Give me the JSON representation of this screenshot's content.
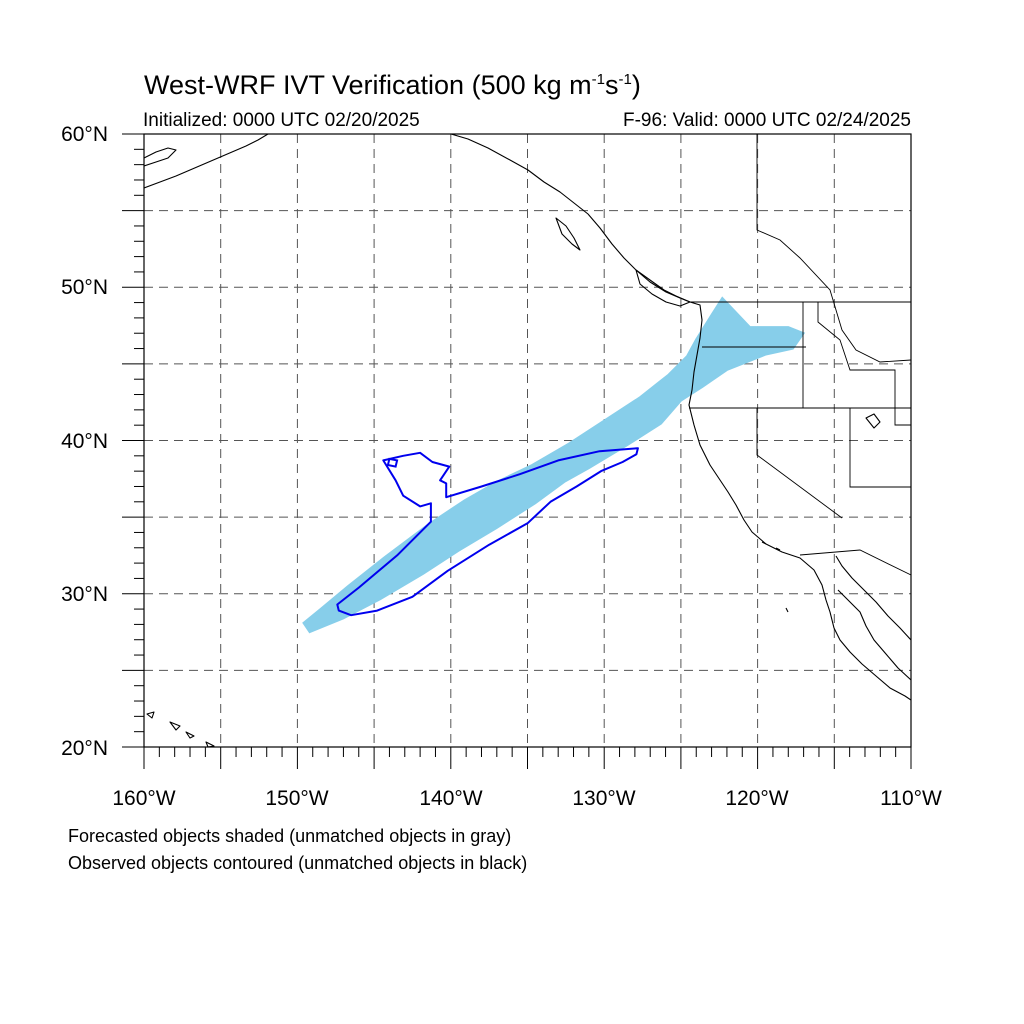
{
  "title": {
    "main": "West-WRF IVT Verification (500 kg m",
    "exp1": "-1",
    "mid": "s",
    "exp2": "-1",
    "close": ")"
  },
  "init_label": "Initialized: 0000 UTC 02/20/2025",
  "valid_label": "F-96: Valid: 0000 UTC 02/24/2025",
  "notes": {
    "forecast": "Forecasted objects shaded (unmatched objects in gray)",
    "observed": "Observed objects contoured (unmatched objects in black)"
  },
  "axes": {
    "lat_labels": [
      "60°N",
      "50°N",
      "40°N",
      "30°N",
      "20°N"
    ],
    "lon_labels": [
      "160°W",
      "150°W",
      "140°W",
      "130°W",
      "120°W",
      "110°W"
    ]
  },
  "map_extent": {
    "lon_min": -160,
    "lon_max": -110,
    "lat_min": 20,
    "lat_max": 60
  },
  "colors": {
    "forecast_fill": "#87ceea",
    "observed_contour": "#0000ee",
    "coast": "#000000",
    "grid": "#555555"
  },
  "forecast_object": [
    [
      -149.2,
      27.5
    ],
    [
      -147,
      28.4
    ],
    [
      -144.5,
      29.7
    ],
    [
      -141.8,
      31.3
    ],
    [
      -139.5,
      32.8
    ],
    [
      -137,
      34.3
    ],
    [
      -134.5,
      35.9
    ],
    [
      -132.6,
      37.3
    ],
    [
      -131,
      38.2
    ],
    [
      -128.5,
      39.7
    ],
    [
      -126.3,
      41.1
    ],
    [
      -125,
      42.6
    ],
    [
      -123.6,
      43.5
    ],
    [
      -122,
      44.6
    ],
    [
      -119.5,
      45.6
    ],
    [
      -117.7,
      46.0
    ],
    [
      -117.0,
      47.0
    ],
    [
      -118.0,
      47.4
    ],
    [
      -120.5,
      47.4
    ],
    [
      -122.3,
      49.3
    ],
    [
      -123.0,
      48.2
    ],
    [
      -124.0,
      46.6
    ],
    [
      -124.6,
      45.5
    ],
    [
      -125.8,
      44.3
    ],
    [
      -127.7,
      42.8
    ],
    [
      -130,
      41.3
    ],
    [
      -132.3,
      39.8
    ],
    [
      -134.7,
      38.4
    ],
    [
      -137,
      37.3
    ],
    [
      -139.1,
      36.1
    ],
    [
      -141.5,
      34.5
    ],
    [
      -144.3,
      32.4
    ],
    [
      -146.7,
      30.5
    ],
    [
      -148.5,
      29.0
    ],
    [
      -149.6,
      28.1
    ]
  ],
  "observed_object": [
    [
      -147.3,
      28.9
    ],
    [
      -146.5,
      28.6
    ],
    [
      -144.8,
      28.9
    ],
    [
      -142.5,
      29.8
    ],
    [
      -140.2,
      31.5
    ],
    [
      -137.5,
      33.2
    ],
    [
      -135.0,
      34.6
    ],
    [
      -133.5,
      36.0
    ],
    [
      -131.8,
      37.0
    ],
    [
      -130.2,
      38.0
    ],
    [
      -128.8,
      38.6
    ],
    [
      -127.9,
      39.1
    ],
    [
      -127.8,
      39.5
    ],
    [
      -130.3,
      39.3
    ],
    [
      -133.0,
      38.7
    ],
    [
      -135.5,
      37.8
    ],
    [
      -138.0,
      37.0
    ],
    [
      -140.3,
      36.3
    ],
    [
      -140.3,
      37.2
    ],
    [
      -140.7,
      37.4
    ],
    [
      -140.1,
      38.3
    ],
    [
      -141.2,
      38.6
    ],
    [
      -142.0,
      39.2
    ],
    [
      -143.1,
      39.0
    ],
    [
      -144.4,
      38.7
    ],
    [
      -143.6,
      37.4
    ],
    [
      -143.1,
      36.4
    ],
    [
      -142.0,
      35.7
    ],
    [
      -141.3,
      35.9
    ],
    [
      -141.3,
      34.7
    ],
    [
      -143.5,
      32.5
    ],
    [
      -146.0,
      30.4
    ],
    [
      -147.4,
      29.3
    ]
  ],
  "observed_hole": [
    [
      -144.1,
      38.4
    ],
    [
      -143.6,
      38.3
    ],
    [
      -143.5,
      38.7
    ],
    [
      -144.0,
      38.8
    ]
  ]
}
